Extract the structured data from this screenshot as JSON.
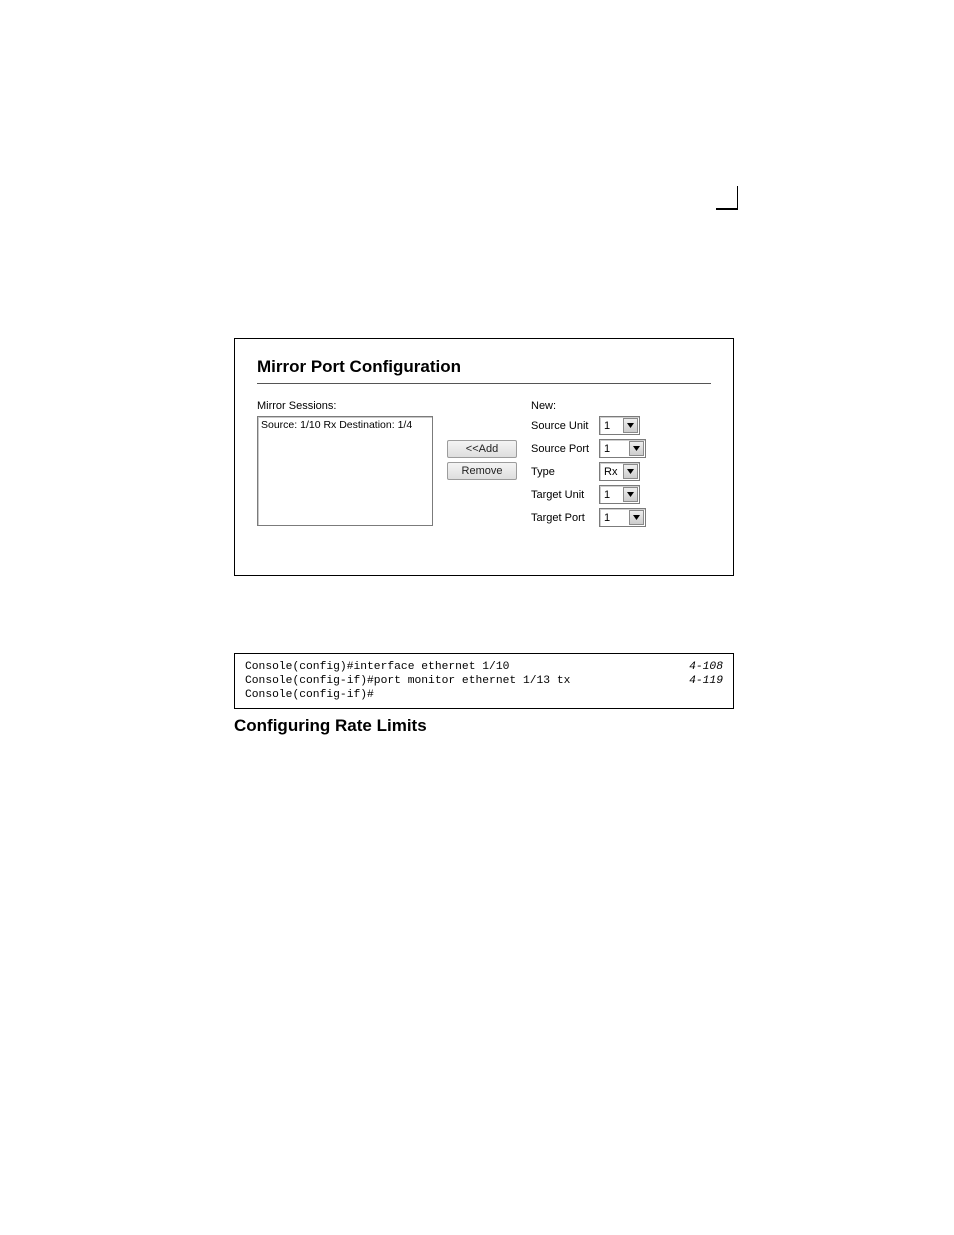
{
  "panel": {
    "title": "Mirror Port Configuration",
    "left_label": "Mirror Sessions:",
    "list_items": [
      "Source: 1/10 Rx Destination: 1/4"
    ],
    "buttons": {
      "add": "<<Add",
      "remove": "Remove"
    },
    "right_label": "New:",
    "fields": [
      {
        "label": "Source Unit",
        "value": "1",
        "width": 14
      },
      {
        "label": "Source Port",
        "value": "1",
        "width": 20
      },
      {
        "label": "Type",
        "value": "Rx",
        "width": 14
      },
      {
        "label": "Target Unit",
        "value": "1",
        "width": 14
      },
      {
        "label": "Target Port",
        "value": "1",
        "width": 20
      }
    ]
  },
  "cli": {
    "lines": [
      {
        "text": "Console(config)#interface ethernet 1/10",
        "ref": "4-108"
      },
      {
        "text": "Console(config-if)#port monitor ethernet 1/13 tx",
        "ref": "4-119"
      },
      {
        "text": "Console(config-if)#",
        "ref": ""
      }
    ]
  },
  "section_heading": "Configuring Rate Limits"
}
